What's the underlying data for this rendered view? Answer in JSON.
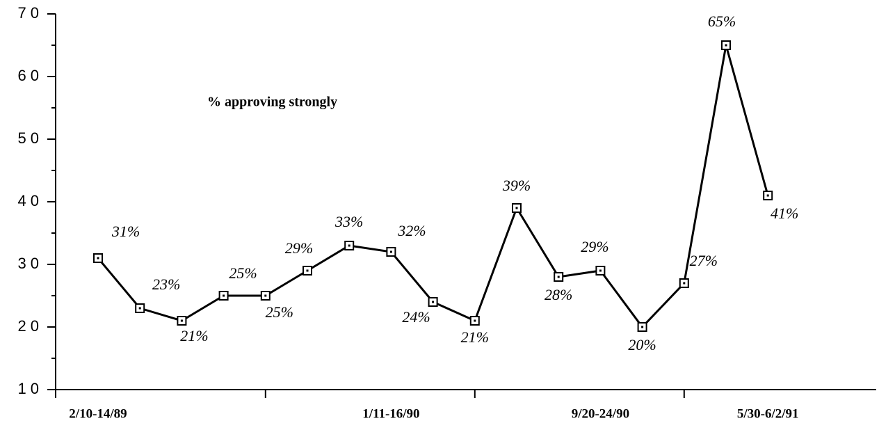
{
  "chart_data": {
    "type": "line",
    "annotation": "% approving strongly",
    "categories": [
      "2/10-14/89",
      null,
      null,
      null,
      null,
      null,
      null,
      "1/11-16/90",
      null,
      null,
      null,
      null,
      "9/20-24/90",
      null,
      null,
      null,
      "5/30-6/2/91"
    ],
    "series": [
      {
        "name": "% approving strongly",
        "color": "#000000",
        "values": [
          31,
          23,
          21,
          25,
          25,
          29,
          33,
          32,
          24,
          21,
          39,
          28,
          29,
          20,
          27,
          65,
          41
        ],
        "value_labels": [
          "31%",
          "23%",
          "21%",
          "25%",
          "25%",
          "29%",
          "33%",
          "32%",
          "24%",
          "21%",
          "39%",
          "28%",
          "29%",
          "20%",
          "27%",
          "65%",
          "41%"
        ]
      }
    ],
    "ylim": [
      10,
      70
    ],
    "yticks": [
      10,
      20,
      30,
      40,
      50,
      60,
      70
    ],
    "grid": false
  }
}
